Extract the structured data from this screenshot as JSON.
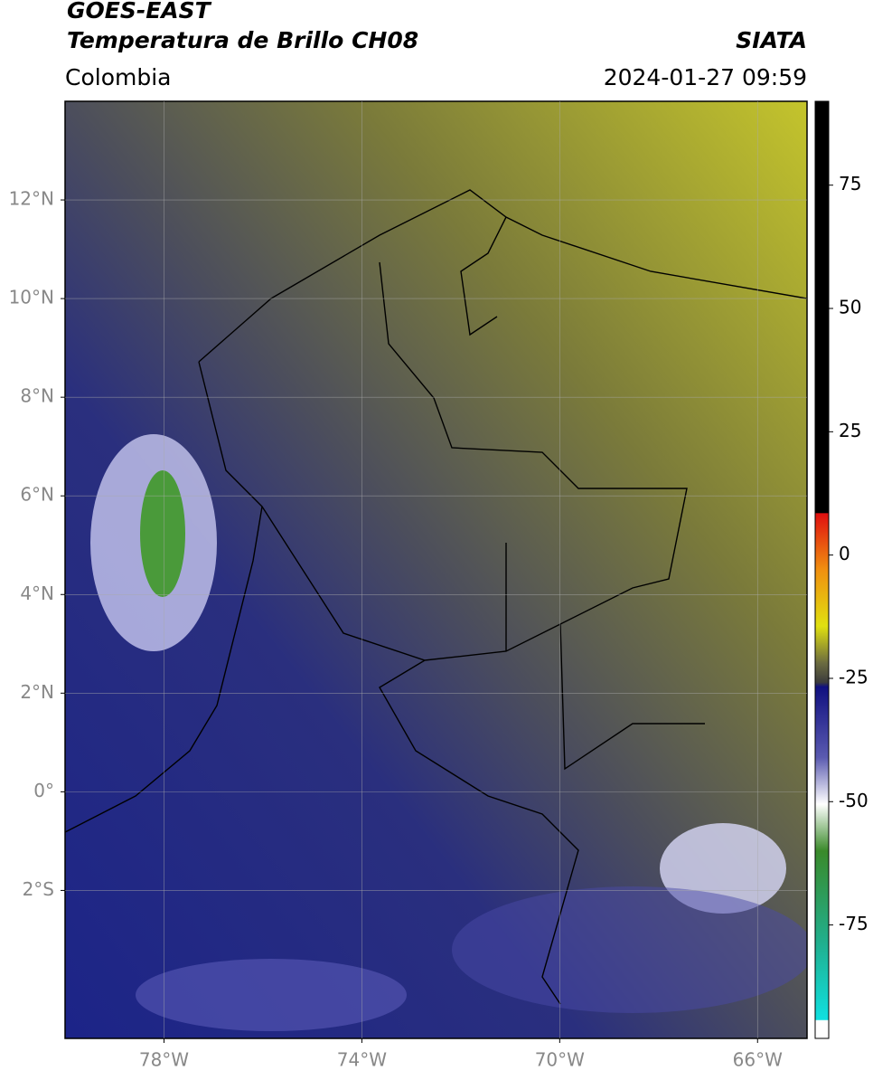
{
  "header": {
    "title": "GOES-EAST",
    "subtitle": "Temperatura de Brillo CH08",
    "source": "SIATA",
    "region": "Colombia",
    "datetime": "2024-01-27 09:59"
  },
  "map": {
    "lonlim": [
      -80,
      -65
    ],
    "latlim": [
      -5,
      14
    ],
    "lon_ticks": [
      {
        "value": -78,
        "label": "78°W"
      },
      {
        "value": -74,
        "label": "74°W"
      },
      {
        "value": -70,
        "label": "70°W"
      },
      {
        "value": -66,
        "label": "66°W"
      }
    ],
    "lat_ticks": [
      {
        "value": 12,
        "label": "12°N"
      },
      {
        "value": 10,
        "label": "10°N"
      },
      {
        "value": 8,
        "label": "8°N"
      },
      {
        "value": 6,
        "label": "6°N"
      },
      {
        "value": 4,
        "label": "4°N"
      },
      {
        "value": 2,
        "label": "2°N"
      },
      {
        "value": 0,
        "label": "0°"
      },
      {
        "value": -2,
        "label": "2°S"
      }
    ]
  },
  "colorbar": {
    "lim": [
      -98,
      92
    ],
    "ticks": [
      75,
      50,
      25,
      0,
      -25,
      -50,
      -75
    ]
  }
}
